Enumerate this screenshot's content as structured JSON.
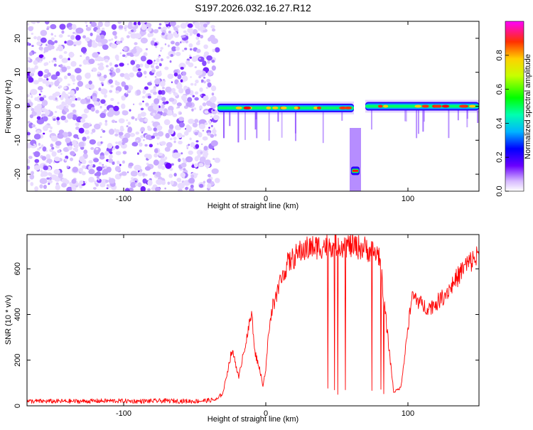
{
  "title": "S197.2026.032.16.27.R12",
  "chart_data": [
    {
      "type": "heatmap",
      "xlabel": "Height of straight line (km)",
      "ylabel": "Frequency (Hz)",
      "xlim": [
        -168,
        150
      ],
      "ylim": [
        -25,
        25
      ],
      "xticks": [
        -100,
        0,
        100
      ],
      "yticks": [
        -20,
        -10,
        0,
        10,
        20
      ],
      "colorbar": {
        "label": "Normalized spectral amplitude",
        "range": [
          0,
          1
        ],
        "ticks": [
          0.0,
          0.2,
          0.4,
          0.6,
          0.8
        ]
      },
      "features": [
        {
          "name": "noise",
          "x": [
            -168,
            -34
          ],
          "y": [
            -25,
            25
          ],
          "amplitude": 0.1
        },
        {
          "name": "carrier",
          "x": [
            -34,
            62
          ],
          "y": -0.5,
          "amplitude": 0.9
        },
        {
          "name": "carrier",
          "x": [
            70,
            150
          ],
          "y": 0,
          "amplitude": 0.9
        },
        {
          "name": "tone",
          "x": [
            60,
            66
          ],
          "y": -19,
          "amplitude": 0.9
        }
      ]
    },
    {
      "type": "line",
      "xlabel": "Height of straight line (km)",
      "ylabel": "SNR (10 * v/v)",
      "xlim": [
        -168,
        150
      ],
      "ylim": [
        0,
        750
      ],
      "xticks": [
        -100,
        0,
        100
      ],
      "yticks": [
        0,
        200,
        400,
        600
      ],
      "color": "#ff0000",
      "series": [
        {
          "x": [
            -168,
            -150,
            -130,
            -110,
            -90,
            -70,
            -50,
            -40,
            -34,
            -30,
            -27,
            -24,
            -22,
            -19,
            -16,
            -13,
            -10,
            -8,
            -5,
            -2,
            0,
            2,
            5,
            10,
            15,
            20,
            25,
            30,
            40,
            50,
            60,
            70,
            80,
            85,
            90,
            95,
            100,
            103,
            106,
            110,
            115,
            120,
            125,
            130,
            140,
            150
          ],
          "y": [
            20,
            20,
            20,
            22,
            20,
            22,
            20,
            24,
            28,
            60,
            150,
            240,
            210,
            120,
            230,
            300,
            420,
            240,
            180,
            90,
            160,
            320,
            440,
            540,
            620,
            650,
            680,
            690,
            700,
            710,
            700,
            690,
            660,
            350,
            60,
            80,
            340,
            480,
            470,
            440,
            430,
            450,
            480,
            520,
            610,
            660
          ]
        }
      ]
    }
  ]
}
